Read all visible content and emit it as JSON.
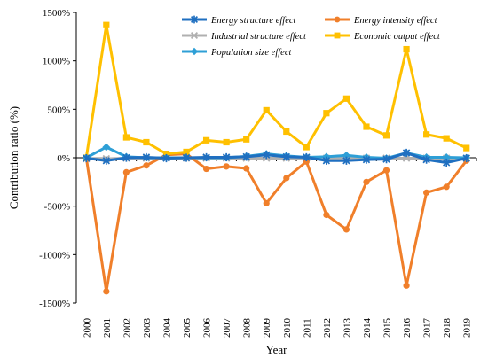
{
  "chart_data": {
    "type": "line",
    "xlabel": "Year",
    "ylabel": "Contribution ratio (%)",
    "categories": [
      "2000",
      "2001",
      "2002",
      "2003",
      "2004",
      "2005",
      "2006",
      "2007",
      "2008",
      "2009",
      "2010",
      "2011",
      "2012",
      "2013",
      "2014",
      "2015",
      "2016",
      "2017",
      "2018",
      "2019"
    ],
    "ylim": [
      -1500,
      1500
    ],
    "yticks": [
      -1500,
      -1000,
      -500,
      0,
      500,
      1000,
      1500
    ],
    "ytick_labels": [
      "-1500%",
      "-1000%",
      "-500%",
      "0%",
      "500%",
      "1000%",
      "1500%"
    ],
    "grid": false,
    "legend_position": "top",
    "series": [
      {
        "name": "Energy structure effect",
        "color": "#1f6fc0",
        "marker": "star",
        "values": [
          -5,
          -30,
          0,
          5,
          -5,
          0,
          5,
          5,
          10,
          30,
          10,
          5,
          -30,
          -30,
          -20,
          -15,
          50,
          -20,
          -50,
          -5
        ]
      },
      {
        "name": "Energy intensity effect",
        "color": "#f07f2a",
        "marker": "circle",
        "values": [
          0,
          -1380,
          -150,
          -80,
          30,
          40,
          -115,
          -90,
          -110,
          -470,
          -210,
          -40,
          -590,
          -740,
          -250,
          -130,
          -1320,
          -360,
          -300,
          -30
        ]
      },
      {
        "name": "Industrial structure effect",
        "color": "#b0b0b0",
        "marker": "x",
        "values": [
          -10,
          -10,
          -5,
          -5,
          -5,
          -5,
          -5,
          -5,
          -5,
          -5,
          -5,
          -5,
          -5,
          -5,
          -5,
          -5,
          -5,
          -5,
          -5,
          -5
        ]
      },
      {
        "name": "Economic output effect",
        "color": "#ffc000",
        "marker": "square",
        "values": [
          0,
          1370,
          210,
          160,
          40,
          60,
          180,
          160,
          190,
          490,
          270,
          110,
          460,
          610,
          320,
          230,
          1120,
          240,
          200,
          100
        ]
      },
      {
        "name": "Population size effect",
        "color": "#2e9fd6",
        "marker": "diamond",
        "values": [
          0,
          110,
          10,
          0,
          0,
          0,
          0,
          0,
          15,
          40,
          20,
          5,
          10,
          25,
          5,
          -5,
          50,
          5,
          5,
          0
        ]
      }
    ]
  }
}
